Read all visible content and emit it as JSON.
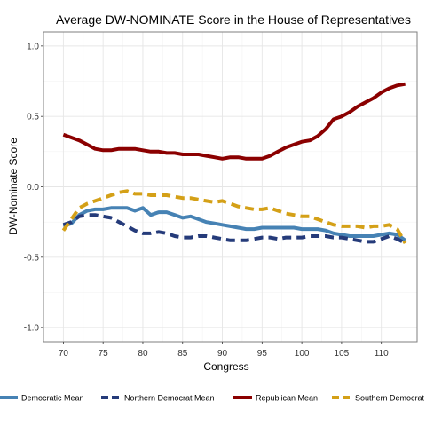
{
  "chart_data": {
    "type": "line",
    "title": "Average DW-NOMINATE Score in the House of Representatives",
    "xlabel": "Congress",
    "ylabel": "DW-Nominate Score",
    "xlim": [
      67.5,
      114.5
    ],
    "ylim": [
      -1.1,
      1.1
    ],
    "x_ticks": [
      70,
      75,
      80,
      85,
      90,
      95,
      100,
      105,
      110
    ],
    "y_ticks": [
      1.0,
      0.5,
      0.0,
      -0.5,
      -1.0
    ],
    "y_tick_labels": [
      "1.0",
      "0.5",
      "0.0",
      "-0.5",
      "-1.0"
    ],
    "grid": true,
    "legend_position": "bottom",
    "x": [
      70,
      71,
      72,
      73,
      74,
      75,
      76,
      77,
      78,
      79,
      80,
      81,
      82,
      83,
      84,
      85,
      86,
      87,
      88,
      89,
      90,
      91,
      92,
      93,
      94,
      95,
      96,
      97,
      98,
      99,
      100,
      101,
      102,
      103,
      104,
      105,
      106,
      107,
      108,
      109,
      110,
      111,
      112,
      113
    ],
    "series": [
      {
        "name": "Democratic Mean",
        "color": "#4682b4",
        "dash": "solid",
        "values": [
          -0.28,
          -0.26,
          -0.2,
          -0.17,
          -0.16,
          -0.16,
          -0.15,
          -0.15,
          -0.15,
          -0.17,
          -0.15,
          -0.2,
          -0.18,
          -0.18,
          -0.2,
          -0.22,
          -0.21,
          -0.23,
          -0.25,
          -0.26,
          -0.27,
          -0.28,
          -0.29,
          -0.3,
          -0.3,
          -0.29,
          -0.29,
          -0.29,
          -0.29,
          -0.29,
          -0.3,
          -0.3,
          -0.3,
          -0.31,
          -0.33,
          -0.34,
          -0.35,
          -0.35,
          -0.35,
          -0.35,
          -0.34,
          -0.33,
          -0.34,
          -0.38
        ]
      },
      {
        "name": "Northern Democrat Mean",
        "color": "#253b7a",
        "dash": "dashed",
        "values": [
          -0.27,
          -0.25,
          -0.21,
          -0.2,
          -0.2,
          -0.21,
          -0.22,
          -0.25,
          -0.28,
          -0.31,
          -0.33,
          -0.33,
          -0.32,
          -0.33,
          -0.35,
          -0.36,
          -0.36,
          -0.35,
          -0.35,
          -0.36,
          -0.37,
          -0.38,
          -0.38,
          -0.38,
          -0.37,
          -0.36,
          -0.36,
          -0.37,
          -0.36,
          -0.36,
          -0.36,
          -0.35,
          -0.35,
          -0.35,
          -0.36,
          -0.36,
          -0.37,
          -0.38,
          -0.39,
          -0.39,
          -0.37,
          -0.35,
          -0.37,
          -0.4
        ]
      },
      {
        "name": "Republican Mean",
        "color": "#8b0000",
        "dash": "solid",
        "values": [
          0.37,
          0.35,
          0.33,
          0.3,
          0.27,
          0.26,
          0.26,
          0.27,
          0.27,
          0.27,
          0.26,
          0.25,
          0.25,
          0.24,
          0.24,
          0.23,
          0.23,
          0.23,
          0.22,
          0.21,
          0.2,
          0.21,
          0.21,
          0.2,
          0.2,
          0.2,
          0.22,
          0.25,
          0.28,
          0.3,
          0.32,
          0.33,
          0.36,
          0.41,
          0.48,
          0.5,
          0.53,
          0.57,
          0.6,
          0.63,
          0.67,
          0.7,
          0.72,
          0.73
        ]
      },
      {
        "name": "Southern Democrat Mean",
        "color": "#d4a017",
        "dash": "dashed",
        "values": [
          -0.31,
          -0.23,
          -0.15,
          -0.12,
          -0.1,
          -0.08,
          -0.06,
          -0.04,
          -0.03,
          -0.05,
          -0.05,
          -0.06,
          -0.06,
          -0.06,
          -0.07,
          -0.08,
          -0.08,
          -0.09,
          -0.1,
          -0.11,
          -0.1,
          -0.12,
          -0.14,
          -0.15,
          -0.16,
          -0.16,
          -0.15,
          -0.17,
          -0.19,
          -0.2,
          -0.21,
          -0.21,
          -0.23,
          -0.25,
          -0.27,
          -0.28,
          -0.28,
          -0.28,
          -0.29,
          -0.28,
          -0.28,
          -0.27,
          -0.3,
          -0.4
        ]
      }
    ]
  }
}
